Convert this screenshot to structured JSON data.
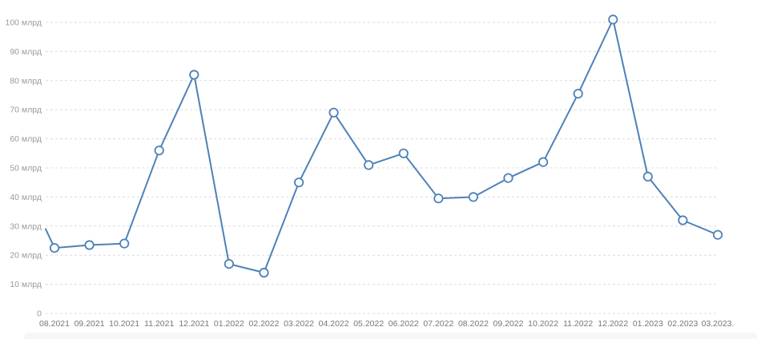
{
  "chart_data": {
    "type": "line",
    "title": "",
    "xlabel": "",
    "ylabel": "",
    "legend": "none",
    "grid": "horizontal-dashed",
    "ylim": [
      0,
      100
    ],
    "categories": [
      "08.2021",
      "09.2021",
      "10.2021",
      "11.2021",
      "12.2021",
      "01.2022",
      "02.2022",
      "03.2022",
      "04.2022",
      "05.2022",
      "06.2022",
      "07.2022",
      "08.2022",
      "09.2022",
      "10.2022",
      "11.2022",
      "12.2022",
      "01.2023",
      "02.2023",
      "03.2023."
    ],
    "values": [
      22.5,
      23.5,
      24,
      56,
      82,
      17,
      14,
      45,
      69,
      51,
      55,
      39.5,
      40,
      46.5,
      52,
      75.5,
      101,
      47,
      32,
      27
    ],
    "clipped_entry_value": 29,
    "y_ticks": [
      {
        "v": 0,
        "label": "0"
      },
      {
        "v": 10,
        "label": "10 млрд"
      },
      {
        "v": 20,
        "label": "20 млрд"
      },
      {
        "v": 30,
        "label": "30 млрд"
      },
      {
        "v": 40,
        "label": "40 млрд"
      },
      {
        "v": 50,
        "label": "50 млрд"
      },
      {
        "v": 60,
        "label": "60 млрд"
      },
      {
        "v": 70,
        "label": "70 млрд"
      },
      {
        "v": 80,
        "label": "80 млрд"
      },
      {
        "v": 90,
        "label": "90 млрд"
      },
      {
        "v": 100,
        "label": "100 млрд"
      }
    ]
  },
  "colors": {
    "line": "#4e81b8",
    "marker_fill": "#fcfdfe",
    "grid": "#dcdcdc",
    "y_label": "#9a9a9a",
    "x_label": "#777777",
    "background": "#ffffff"
  }
}
